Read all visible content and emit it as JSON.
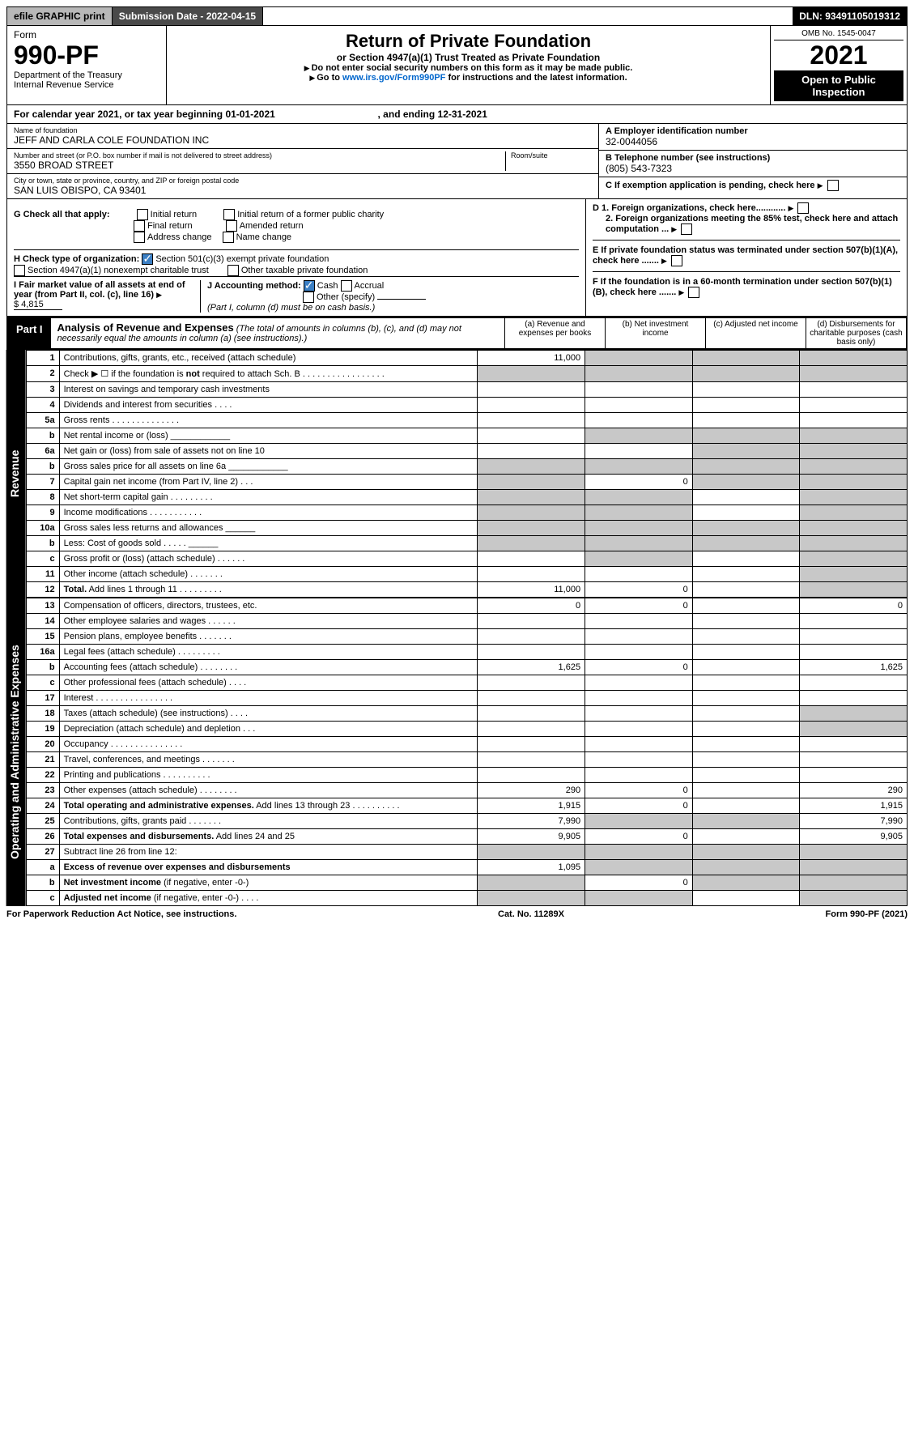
{
  "top": {
    "efile": "efile GRAPHIC print",
    "submit": "Submission Date - 2022-04-15",
    "dln": "DLN: 93491105019312"
  },
  "header": {
    "form": "Form",
    "form_no": "990-PF",
    "dept": "Department of the Treasury\nInternal Revenue Service",
    "title": "Return of Private Foundation",
    "subtitle": "or Section 4947(a)(1) Trust Treated as Private Foundation",
    "note1": "Do not enter social security numbers on this form as it may be made public.",
    "note2": "Go to",
    "link": "www.irs.gov/Form990PF",
    "note3": "for instructions and the latest information.",
    "omb": "OMB No. 1545-0047",
    "year": "2021",
    "open": "Open to Public Inspection"
  },
  "cal": {
    "text": "For calendar year 2021, or tax year beginning 01-01-2021",
    "end": ", and ending 12-31-2021"
  },
  "id": {
    "name_lbl": "Name of foundation",
    "name": "JEFF AND CARLA COLE FOUNDATION INC",
    "addr_lbl": "Number and street (or P.O. box number if mail is not delivered to street address)",
    "addr": "3550 BROAD STREET",
    "room_lbl": "Room/suite",
    "city_lbl": "City or town, state or province, country, and ZIP or foreign postal code",
    "city": "SAN LUIS OBISPO, CA  93401",
    "a_lbl": "A Employer identification number",
    "a_val": "32-0044056",
    "b_lbl": "B Telephone number (see instructions)",
    "b_val": "(805) 543-7323",
    "c_lbl": "C If exemption application is pending, check here",
    "d1": "D 1. Foreign organizations, check here............",
    "d2": "2. Foreign organizations meeting the 85% test, check here and attach computation ...",
    "e": "E  If private foundation status was terminated under section 507(b)(1)(A), check here .......",
    "f": "F  If the foundation is in a 60-month termination under section 507(b)(1)(B), check here .......",
    "g": "G Check all that apply:",
    "g_opts": [
      "Initial return",
      "Final return",
      "Address change",
      "Initial return of a former public charity",
      "Amended return",
      "Name change"
    ],
    "h": "H Check type of organization:",
    "h1": "Section 501(c)(3) exempt private foundation",
    "h2": "Section 4947(a)(1) nonexempt charitable trust",
    "h3": "Other taxable private foundation",
    "i": "I Fair market value of all assets at end of year (from Part II, col. (c), line 16)",
    "i_val": "$  4,815",
    "j": "J Accounting method:",
    "j_opts": [
      "Cash",
      "Accrual",
      "Other (specify)"
    ],
    "j_note": "(Part I, column (d) must be on cash basis.)"
  },
  "part1": {
    "label": "Part I",
    "title": "Analysis of Revenue and Expenses",
    "note": "(The total of amounts in columns (b), (c), and (d) may not necessarily equal the amounts in column (a) (see instructions).)",
    "cols": [
      "(a)  Revenue and expenses per books",
      "(b)  Net investment income",
      "(c)  Adjusted net income",
      "(d)  Disbursements for charitable purposes (cash basis only)"
    ]
  },
  "sections": {
    "rev": "Revenue",
    "exp": "Operating and Administrative Expenses"
  },
  "rows": [
    {
      "s": "rev",
      "n": "1",
      "d": "Contributions, gifts, grants, etc., received (attach schedule)",
      "a": "11,000",
      "bs": 1,
      "cs": 1,
      "ds": 1
    },
    {
      "s": "rev",
      "n": "2",
      "d": "Check ▶ ☐ if the foundation is <b>not</b> required to attach Sch. B  .  .  .  .  .  .  .  .  .  .  .  .  .  .  .  .  .",
      "as": 1,
      "bs": 1,
      "cs": 1,
      "ds": 1
    },
    {
      "s": "rev",
      "n": "3",
      "d": "Interest on savings and temporary cash investments"
    },
    {
      "s": "rev",
      "n": "4",
      "d": "Dividends and interest from securities   .   .   .  ."
    },
    {
      "s": "rev",
      "n": "5a",
      "d": "Gross rents   .   .   .   .   .   .   .   .   .   .   .   .   .  ."
    },
    {
      "s": "rev",
      "n": "b",
      "d": "Net rental income or (loss) ____________",
      "bs": 1,
      "cs": 1,
      "ds": 1
    },
    {
      "s": "rev",
      "n": "6a",
      "d": "Net gain or (loss) from sale of assets not on line 10",
      "cs": 1,
      "ds": 1
    },
    {
      "s": "rev",
      "n": "b",
      "d": "Gross sales price for all assets on line 6a ____________",
      "as": 1,
      "bs": 1,
      "cs": 1,
      "ds": 1
    },
    {
      "s": "rev",
      "n": "7",
      "d": "Capital gain net income (from Part IV, line 2)   .   .    .",
      "as": 1,
      "b": "0",
      "cs": 1,
      "ds": 1
    },
    {
      "s": "rev",
      "n": "8",
      "d": "Net short-term capital gain  .   .   .   .   .   .   .   .  .",
      "as": 1,
      "bs": 1,
      "ds": 1
    },
    {
      "s": "rev",
      "n": "9",
      "d": "Income modifications  .   .   .   .   .   .   .   .   .   .  .",
      "as": 1,
      "bs": 1,
      "ds": 1
    },
    {
      "s": "rev",
      "n": "10a",
      "d": "Gross sales less returns and allowances  ______",
      "as": 1,
      "bs": 1,
      "cs": 1,
      "ds": 1
    },
    {
      "s": "rev",
      "n": "b",
      "d": "Less: Cost of goods sold   .   .   .   .   .  ______",
      "as": 1,
      "bs": 1,
      "cs": 1,
      "ds": 1
    },
    {
      "s": "rev",
      "n": "c",
      "d": "Gross profit or (loss) (attach schedule)   .   .   .   .   .  .",
      "bs": 1,
      "ds": 1
    },
    {
      "s": "rev",
      "n": "11",
      "d": "Other income (attach schedule)    .   .   .   .   .   .  .",
      "ds": 1
    },
    {
      "s": "rev",
      "n": "12",
      "d": "<b>Total.</b> Add lines 1 through 11   .   .   .   .   .   .   .   .  .",
      "a": "11,000",
      "b": "0",
      "ds": 1
    },
    {
      "s": "exp",
      "n": "13",
      "d": "Compensation of officers, directors, trustees, etc.",
      "a": "0",
      "b": "0",
      "d2": "0"
    },
    {
      "s": "exp",
      "n": "14",
      "d": "Other employee salaries and wages    .   .   .   .   .  ."
    },
    {
      "s": "exp",
      "n": "15",
      "d": "Pension plans, employee benefits  .   .   .   .   .   .  ."
    },
    {
      "s": "exp",
      "n": "16a",
      "d": "Legal fees (attach schedule) .   .   .   .   .   .   .   .  ."
    },
    {
      "s": "exp",
      "n": "b",
      "d": "Accounting fees (attach schedule) .   .   .   .   .   .   .  .",
      "a": "1,625",
      "b": "0",
      "d2": "1,625"
    },
    {
      "s": "exp",
      "n": "c",
      "d": "Other professional fees (attach schedule)    .   .   .  ."
    },
    {
      "s": "exp",
      "n": "17",
      "d": "Interest  .   .   .   .   .   .   .   .   .   .   .   .   .   .   .  ."
    },
    {
      "s": "exp",
      "n": "18",
      "d": "Taxes (attach schedule) (see instructions)   .   .   .  .",
      "ds": 1
    },
    {
      "s": "exp",
      "n": "19",
      "d": "Depreciation (attach schedule) and depletion    .   .  .",
      "ds": 1
    },
    {
      "s": "exp",
      "n": "20",
      "d": "Occupancy .   .   .   .   .   .   .   .   .   .   .   .   .   .  ."
    },
    {
      "s": "exp",
      "n": "21",
      "d": "Travel, conferences, and meetings .   .   .   .   .   .  ."
    },
    {
      "s": "exp",
      "n": "22",
      "d": "Printing and publications .   .   .   .   .   .   .   .   .  ."
    },
    {
      "s": "exp",
      "n": "23",
      "d": "Other expenses (attach schedule) .   .   .   .   .   .   .  .",
      "a": "290",
      "b": "0",
      "d2": "290"
    },
    {
      "s": "exp",
      "n": "24",
      "d": "<b>Total operating and administrative expenses.</b> Add lines 13 through 23  .   .   .   .   .   .   .   .   .  .",
      "a": "1,915",
      "b": "0",
      "d2": "1,915"
    },
    {
      "s": "exp",
      "n": "25",
      "d": "Contributions, gifts, grants paid    .   .   .   .   .   .  .",
      "a": "7,990",
      "bs": 1,
      "cs": 1,
      "d2": "7,990"
    },
    {
      "s": "exp",
      "n": "26",
      "d": "<b>Total expenses and disbursements.</b> Add lines 24 and 25",
      "a": "9,905",
      "b": "0",
      "d2": "9,905"
    },
    {
      "s": "exp",
      "n": "27",
      "d": "Subtract line 26 from line 12:",
      "as": 1,
      "bs": 1,
      "cs": 1,
      "ds": 1
    },
    {
      "s": "exp",
      "n": "a",
      "d": "<b>Excess of revenue over expenses and disbursements</b>",
      "a": "1,095",
      "bs": 1,
      "cs": 1,
      "ds": 1
    },
    {
      "s": "exp",
      "n": "b",
      "d": "<b>Net investment income</b> (if negative, enter -0-)",
      "as": 1,
      "b": "0",
      "cs": 1,
      "ds": 1
    },
    {
      "s": "exp",
      "n": "c",
      "d": "<b>Adjusted net income</b> (if negative, enter -0-)   .   .   .  .",
      "as": 1,
      "bs": 1,
      "ds": 1
    }
  ],
  "footer": {
    "l": "For Paperwork Reduction Act Notice, see instructions.",
    "c": "Cat. No. 11289X",
    "r": "Form 990-PF (2021)"
  }
}
